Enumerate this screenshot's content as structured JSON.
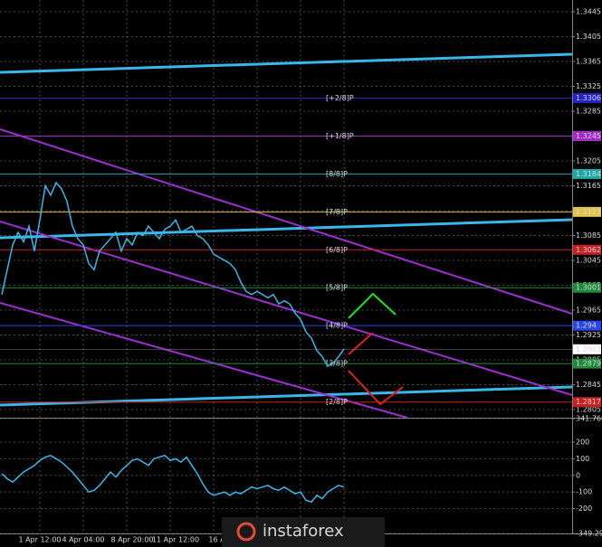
{
  "chart_data": [
    {
      "type": "line",
      "categories": [
        null,
        null,
        null,
        null,
        null,
        null,
        null,
        "1 Apr 12:00",
        null,
        null,
        null,
        null,
        null,
        null,
        null,
        "4 Apr 04:00",
        null,
        null,
        null,
        null,
        null,
        null,
        null,
        null,
        "8 Apr 20:00",
        null,
        null,
        null,
        null,
        null,
        null,
        null,
        "11 Apr 12:00",
        null,
        null,
        null,
        null,
        null,
        null,
        null,
        "16 Ap",
        null,
        null,
        null,
        null,
        null,
        null,
        null,
        null,
        null,
        null,
        null,
        null,
        null,
        null,
        null,
        null,
        null,
        null,
        null,
        null,
        null,
        null,
        null
      ],
      "series": [
        {
          "color": "#3ab7e8",
          "values": [
            1.299,
            1.303,
            1.307,
            1.309,
            1.3075,
            1.31,
            1.306,
            1.311,
            1.3165,
            1.315,
            1.317,
            1.316,
            1.314,
            1.31,
            1.308,
            1.307,
            1.304,
            1.303,
            1.306,
            1.307,
            1.308,
            1.309,
            1.306,
            1.308,
            1.307,
            1.309,
            1.3085,
            1.31,
            1.309,
            1.308,
            1.3095,
            1.31,
            1.311,
            1.309,
            1.3095,
            1.31,
            1.3085,
            1.308,
            1.307,
            1.3055,
            1.305,
            1.3045,
            1.304,
            1.303,
            1.301,
            1.2995,
            1.299,
            1.2995,
            1.299,
            1.2985,
            1.299,
            1.2975,
            1.298,
            1.2975,
            1.296,
            1.295,
            1.293,
            1.292,
            1.29,
            1.289,
            1.2875,
            1.288,
            1.289,
            1.2902
          ]
        }
      ],
      "ylim": [
        1.27919,
        1.34639
      ],
      "yticks": [
        1.2805,
        1.2845,
        1.2885,
        1.2925,
        1.2965,
        1.3005,
        1.3045,
        1.3085,
        1.3125,
        1.3165,
        1.3205,
        1.3245,
        1.3285,
        1.3325,
        1.3365,
        1.3405,
        1.3445
      ],
      "grid": true,
      "levels": [
        {
          "label": "[+2/8]P",
          "value": 1.3306,
          "color": "#2424c8"
        },
        {
          "label": "[+1/8]P",
          "value": 1.3245,
          "color": "#a42ac8"
        },
        {
          "label": "[8/8]P",
          "value": 1.3184,
          "color": "#1fa8a8"
        },
        {
          "label": "[7/8]P",
          "value": 1.3123,
          "color": "#e2c24a"
        },
        {
          "label": "[6/8]P",
          "value": 1.3062,
          "color": "#c82020"
        },
        {
          "label": "[5/8]P",
          "value": 1.3001,
          "color": "#1f8a3a"
        },
        {
          "label": "[4/8]P",
          "value": 1.294,
          "color": "#2a46e6"
        },
        {
          "label": "[3/8]P",
          "value": 1.2879,
          "color": "#1f8a3a"
        },
        {
          "label": "[2/8]P",
          "value": 1.2817,
          "color": "#c82020"
        }
      ],
      "last_price": 1.2902
    },
    {
      "type": "line",
      "series": [
        {
          "color": "#3ab7e8",
          "values": [
            10,
            -20,
            -40,
            -10,
            20,
            40,
            60,
            90,
            110,
            120,
            100,
            80,
            50,
            20,
            -20,
            -60,
            -100,
            -90,
            -60,
            -20,
            20,
            -10,
            30,
            60,
            90,
            100,
            80,
            60,
            100,
            110,
            120,
            90,
            100,
            80,
            110,
            60,
            10,
            -50,
            -100,
            -120,
            -110,
            -100,
            -120,
            -100,
            -110,
            -90,
            -70,
            -80,
            -70,
            -60,
            -80,
            -90,
            -70,
            -90,
            -110,
            -100,
            -150,
            -160,
            -120,
            -140,
            -100,
            -80,
            -60,
            -70
          ]
        }
      ],
      "ylim": [
        -349.291,
        341.7683
      ],
      "yticks": [
        -349.291,
        -200,
        -100,
        0,
        100,
        200,
        341.7683
      ],
      "grid": true
    },
    {
      "type": "watermark",
      "text": "instaforex"
    }
  ]
}
